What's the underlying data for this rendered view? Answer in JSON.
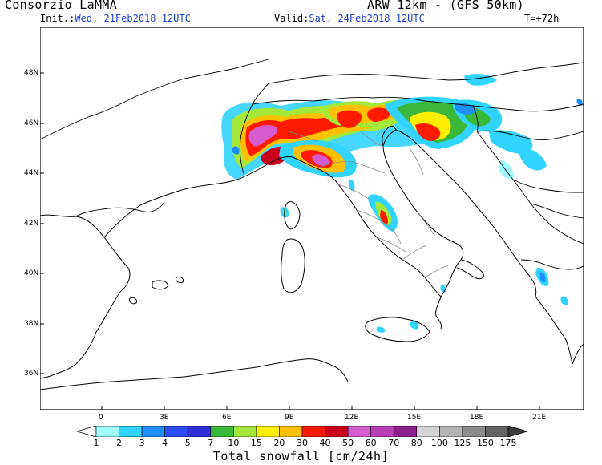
{
  "header": {
    "producer": "Consorzio LaMMA",
    "model": "ARW 12km - (GFS 50km)",
    "init_label": "Init.:",
    "init_value": "Wed, 21Feb2018 12UTC",
    "valid_label": "Valid:",
    "valid_value": "Sat, 24Feb2018 12UTC",
    "lead_time": "T=+72h"
  },
  "map": {
    "lat_labels": [
      "48N",
      "46N",
      "44N",
      "42N",
      "40N",
      "38N",
      "36N"
    ],
    "lon_labels": [
      "0",
      "3E",
      "6E",
      "9E",
      "12E",
      "15E",
      "18E",
      "21E"
    ],
    "land_color": "#ffffff",
    "coast_color": "#000000",
    "border_color": "#888888"
  },
  "legend": {
    "title": "Total snowfall [cm/24h]",
    "levels": [
      "1",
      "2",
      "3",
      "4",
      "5",
      "7",
      "10",
      "15",
      "20",
      "30",
      "40",
      "50",
      "60",
      "70",
      "80",
      "100",
      "125",
      "150",
      "175"
    ],
    "colors": [
      "#9ffcff",
      "#31d3ff",
      "#1f8fff",
      "#2b4bff",
      "#2f2fd6",
      "#3ab83a",
      "#a4e83a",
      "#ffee00",
      "#ffc000",
      "#ff1a00",
      "#c8001e",
      "#d65bcf",
      "#b83fb8",
      "#8b1f8b",
      "#d4d4d4",
      "#b4b4b4",
      "#8c8c8c",
      "#646464",
      "#3c3c3c"
    ]
  }
}
